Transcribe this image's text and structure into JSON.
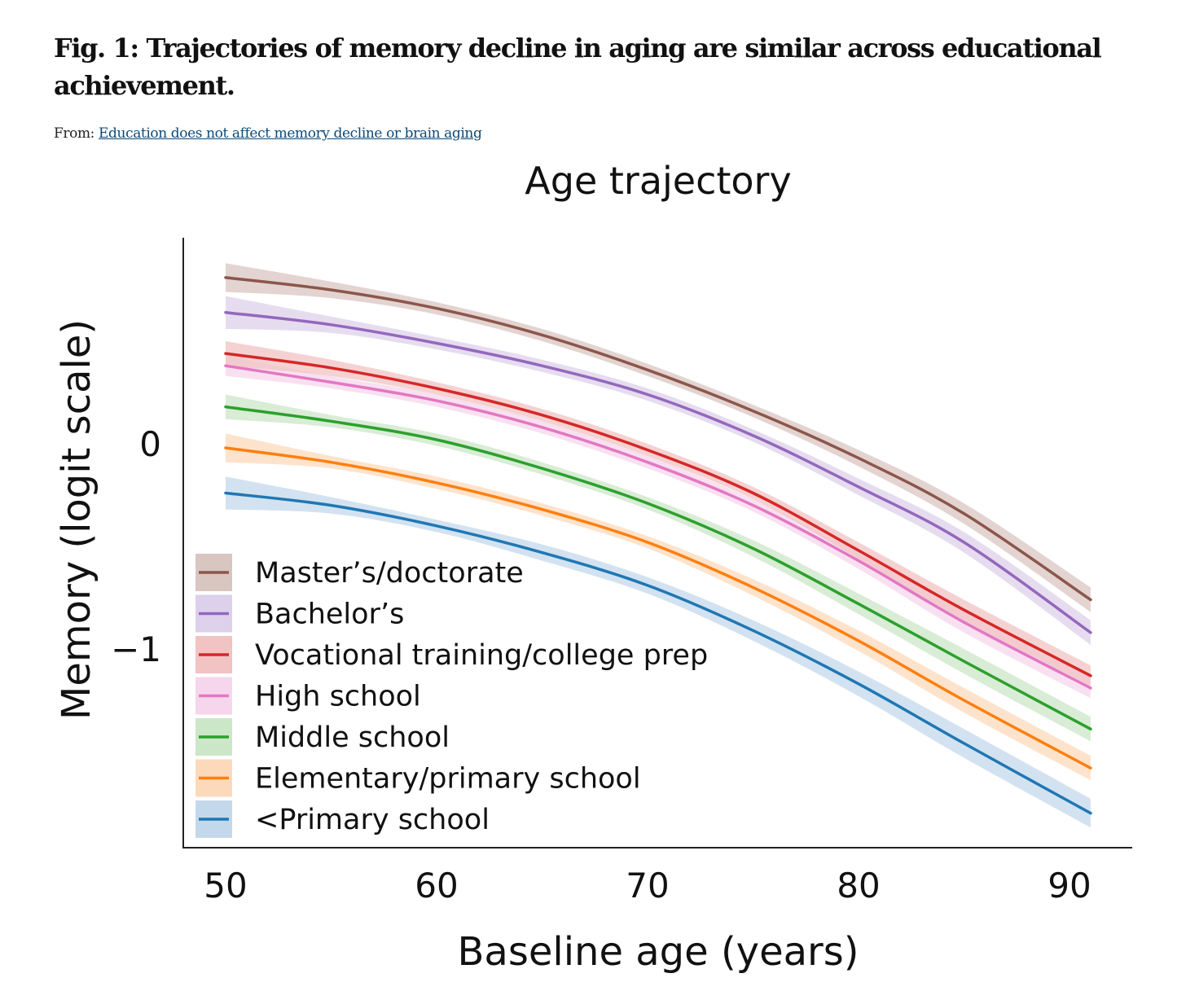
{
  "figure": {
    "title": "Fig. 1: Trajectories of memory decline in aging are similar across educational achievement.",
    "source_prefix": "From:",
    "source_link": "Education does not affect memory decline or brain aging"
  },
  "chart_data": {
    "type": "line",
    "title": "Age trajectory",
    "xlabel": "Baseline age (years)",
    "ylabel": "Memory (logit scale)",
    "xlim": [
      48,
      93
    ],
    "ylim": [
      -1.95,
      1.0
    ],
    "x_ticks": [
      50,
      60,
      70,
      80,
      90
    ],
    "x_tick_labels": [
      "50",
      "60",
      "70",
      "80",
      "90"
    ],
    "y_ticks": [
      0,
      -1
    ],
    "y_tick_labels": [
      "0",
      "−1"
    ],
    "legend_position": "bottom-left",
    "shaded_band": "confidence interval",
    "x": [
      50,
      55,
      60,
      65,
      70,
      75,
      80,
      85,
      91
    ],
    "series": [
      {
        "name": "Master’s/doctorate",
        "color": "#8c564b",
        "band": "#d9c6c1",
        "values": [
          0.81,
          0.75,
          0.66,
          0.53,
          0.36,
          0.16,
          -0.07,
          -0.34,
          -0.76
        ],
        "lower": [
          0.74,
          0.71,
          0.63,
          0.5,
          0.33,
          0.13,
          -0.11,
          -0.39,
          -0.82
        ],
        "upper": [
          0.88,
          0.79,
          0.69,
          0.56,
          0.39,
          0.19,
          -0.03,
          -0.29,
          -0.7
        ]
      },
      {
        "name": "Bachelor’s",
        "color": "#9467bd",
        "band": "#ddd0ea",
        "values": [
          0.64,
          0.58,
          0.49,
          0.38,
          0.24,
          0.04,
          -0.21,
          -0.48,
          -0.92
        ],
        "lower": [
          0.56,
          0.54,
          0.46,
          0.35,
          0.21,
          0.01,
          -0.25,
          -0.53,
          -0.98
        ],
        "upper": [
          0.72,
          0.62,
          0.52,
          0.41,
          0.27,
          0.07,
          -0.17,
          -0.43,
          -0.86
        ]
      },
      {
        "name": "Vocational training/college prep",
        "color": "#d62728",
        "band": "#f1c3c3",
        "values": [
          0.44,
          0.37,
          0.27,
          0.14,
          -0.03,
          -0.24,
          -0.52,
          -0.81,
          -1.13
        ],
        "lower": [
          0.38,
          0.33,
          0.24,
          0.11,
          -0.06,
          -0.27,
          -0.56,
          -0.86,
          -1.18
        ],
        "upper": [
          0.5,
          0.41,
          0.3,
          0.17,
          0.0,
          -0.21,
          -0.48,
          -0.76,
          -1.08
        ]
      },
      {
        "name": "High school",
        "color": "#e377c2",
        "band": "#f6d6ec",
        "values": [
          0.38,
          0.3,
          0.21,
          0.08,
          -0.09,
          -0.3,
          -0.57,
          -0.87,
          -1.19
        ],
        "lower": [
          0.33,
          0.27,
          0.18,
          0.05,
          -0.12,
          -0.33,
          -0.61,
          -0.92,
          -1.24
        ],
        "upper": [
          0.43,
          0.33,
          0.24,
          0.11,
          -0.06,
          -0.27,
          -0.53,
          -0.82,
          -1.14
        ]
      },
      {
        "name": "Middle school",
        "color": "#2ca02c",
        "band": "#cce6c8",
        "values": [
          0.18,
          0.11,
          0.02,
          -0.12,
          -0.29,
          -0.51,
          -0.78,
          -1.06,
          -1.39
        ],
        "lower": [
          0.12,
          0.08,
          -0.01,
          -0.15,
          -0.32,
          -0.55,
          -0.83,
          -1.12,
          -1.45
        ],
        "upper": [
          0.24,
          0.14,
          0.05,
          -0.09,
          -0.26,
          -0.47,
          -0.73,
          -1.0,
          -1.33
        ]
      },
      {
        "name": "Elementary/primary school",
        "color": "#ff7f0e",
        "band": "#fdd9bb",
        "values": [
          -0.02,
          -0.09,
          -0.19,
          -0.32,
          -0.48,
          -0.7,
          -0.96,
          -1.25,
          -1.58
        ],
        "lower": [
          -0.09,
          -0.12,
          -0.22,
          -0.35,
          -0.51,
          -0.74,
          -1.01,
          -1.31,
          -1.64
        ],
        "upper": [
          0.05,
          -0.06,
          -0.16,
          -0.29,
          -0.45,
          -0.66,
          -0.91,
          -1.19,
          -1.52
        ]
      },
      {
        "name": "<Primary school",
        "color": "#1f77b4",
        "band": "#c4d8eb",
        "values": [
          -0.24,
          -0.3,
          -0.4,
          -0.53,
          -0.69,
          -0.91,
          -1.17,
          -1.46,
          -1.8
        ],
        "lower": [
          -0.32,
          -0.34,
          -0.43,
          -0.57,
          -0.73,
          -0.96,
          -1.23,
          -1.53,
          -1.87
        ],
        "upper": [
          -0.16,
          -0.26,
          -0.37,
          -0.49,
          -0.65,
          -0.86,
          -1.11,
          -1.39,
          -1.73
        ]
      }
    ]
  }
}
